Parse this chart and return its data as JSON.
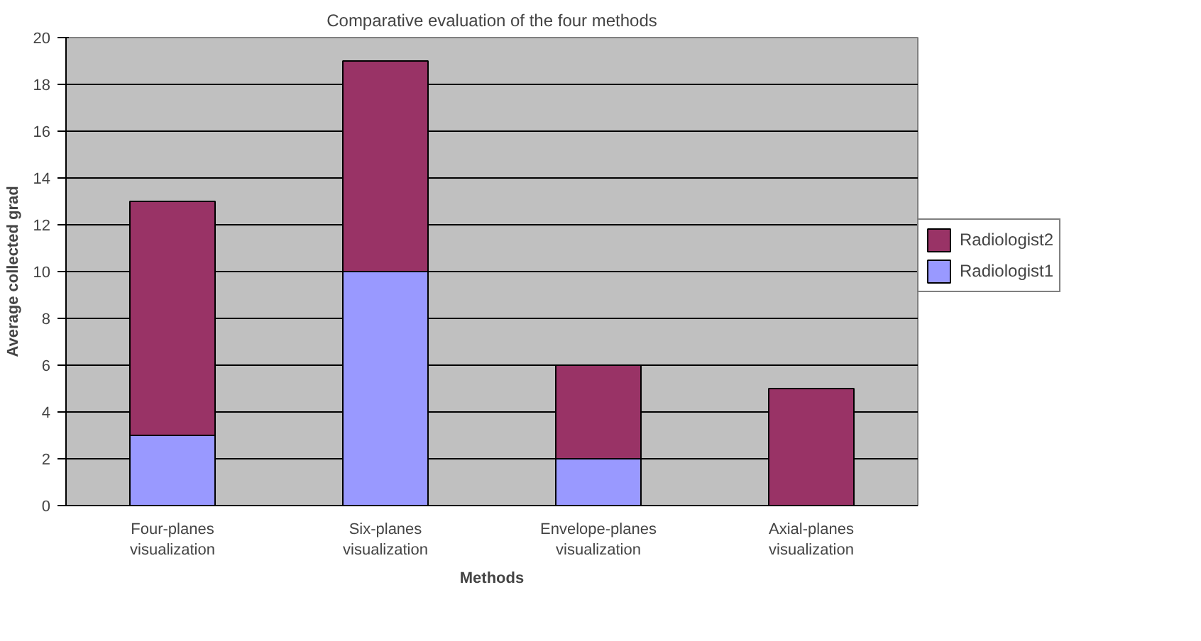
{
  "chart_data": {
    "type": "bar",
    "title": "Comparative evaluation of the four methods",
    "xlabel": "Methods",
    "ylabel": "Average collected grad",
    "categories": [
      "Four-planes\nvisualization",
      "Six-planes\nvisualization",
      "Envelope-planes\nvisualization",
      "Axial-planes\nvisualization"
    ],
    "stacked": true,
    "series": [
      {
        "name": "Radiologist1",
        "color": "#9999ff",
        "values": [
          3,
          10,
          2,
          0
        ]
      },
      {
        "name": "Radiologist2",
        "color": "#993366",
        "values": [
          10,
          9,
          4,
          5
        ]
      }
    ],
    "ylim": [
      0,
      20
    ],
    "yticks": [
      0,
      2,
      4,
      6,
      8,
      10,
      12,
      14,
      16,
      18,
      20
    ],
    "grid": "y",
    "legend": "right"
  }
}
